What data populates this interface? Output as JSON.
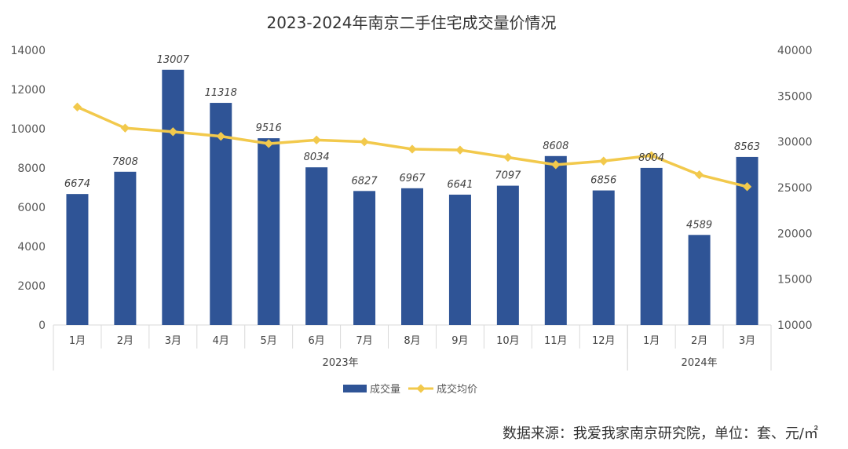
{
  "chart_data": {
    "type": "bar+line",
    "title": "2023-2024年南京二手住宅成交量价情况",
    "categories": [
      "1月",
      "2月",
      "3月",
      "4月",
      "5月",
      "6月",
      "7月",
      "8月",
      "9月",
      "10月",
      "11月",
      "12月",
      "1月",
      "2月",
      "3月"
    ],
    "year_groups": [
      {
        "label": "2023年",
        "count": 12
      },
      {
        "label": "2024年",
        "count": 3
      }
    ],
    "series": [
      {
        "name": "成交量",
        "type": "bar",
        "axis": "left",
        "color": "#2F5496",
        "values": [
          6674,
          7808,
          13007,
          11318,
          9516,
          8034,
          6827,
          6967,
          6641,
          7097,
          8608,
          6856,
          8004,
          4589,
          8563
        ]
      },
      {
        "name": "成交均价",
        "type": "line",
        "axis": "right",
        "color": "#F2C94C",
        "values": [
          33800,
          31500,
          31100,
          30600,
          29800,
          30200,
          30000,
          29200,
          29100,
          28300,
          27500,
          27900,
          28500,
          26400,
          25100
        ]
      }
    ],
    "y_left": {
      "min": 0,
      "max": 14000,
      "ticks": [
        "0",
        "2000",
        "4000",
        "6000",
        "8000",
        "10000",
        "12000",
        "14000"
      ]
    },
    "y_right": {
      "min": 10000,
      "max": 40000,
      "ticks": [
        "10000",
        "15000",
        "20000",
        "25000",
        "30000",
        "35000",
        "40000"
      ]
    },
    "grid": false,
    "legend_position": "bottom"
  },
  "source_note": "数据来源：我爱我家南京研究院，单位：套、元/㎡"
}
